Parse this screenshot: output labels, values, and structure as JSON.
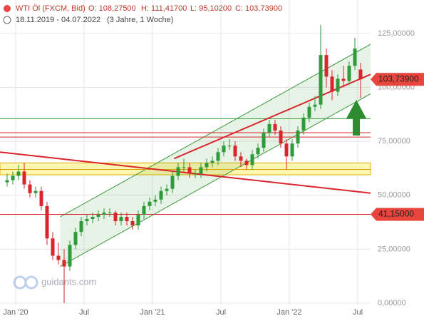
{
  "chart_data": {
    "type": "candlestick",
    "title": "WTI Öl (FXCM, Bid)",
    "quote": [
      "O: 108,27500",
      "H: 111,41700",
      "L: 95,10200",
      "C: 103,73900"
    ],
    "subtitle": "18.11.2019 - 04.07.2022",
    "period": "(3 Jahre, 1 Woche)",
    "watermark": "guidants.com",
    "up_color": "#2e9a3a",
    "down_color": "#d8262c",
    "grid": true,
    "xlim": [
      -1.375,
      31.125
    ],
    "ylim": [
      -1,
      140.5
    ],
    "xticks": [
      {
        "value": 0,
        "label": "Jan '20"
      },
      {
        "value": 6,
        "label": "Jul"
      },
      {
        "value": 12,
        "label": "Jan '21"
      },
      {
        "value": 18,
        "label": "Jul"
      },
      {
        "value": 24,
        "label": "Jan '22"
      },
      {
        "value": 30,
        "label": "Jul"
      }
    ],
    "yticks": [
      {
        "value": 0,
        "label": "0,00000"
      },
      {
        "value": 25,
        "label": "25,00000"
      },
      {
        "value": 50,
        "label": "50,00000"
      },
      {
        "value": 75,
        "label": "75,00000"
      },
      {
        "value": 100,
        "label": "100,00000"
      },
      {
        "value": 125,
        "label": "125,00000"
      }
    ],
    "x": [
      -0.75,
      -0.25,
      0.25,
      0.75,
      1.25,
      1.75,
      2.25,
      2.75,
      3.25,
      3.75,
      4.25,
      4.75,
      5.25,
      5.75,
      6.25,
      6.75,
      7.25,
      7.75,
      8.25,
      8.75,
      9.25,
      9.75,
      10.25,
      10.75,
      11.25,
      11.75,
      12.25,
      12.75,
      13.25,
      13.75,
      14.25,
      14.75,
      15.25,
      15.75,
      16.25,
      16.75,
      17.25,
      17.75,
      18.25,
      18.75,
      19.25,
      19.75,
      20.25,
      20.75,
      21.25,
      21.75,
      22.25,
      22.75,
      23.25,
      23.75,
      24.25,
      24.75,
      25.25,
      25.75,
      26.25,
      26.75,
      27.25,
      27.75,
      28.25,
      28.75,
      29.25,
      29.75,
      30.25
    ],
    "ohlc": [
      [
        56,
        60,
        54,
        57
      ],
      [
        57,
        61,
        55,
        59
      ],
      [
        59,
        64,
        57,
        61
      ],
      [
        61,
        65,
        53,
        55
      ],
      [
        55,
        57,
        49,
        51
      ],
      [
        51,
        54,
        49,
        52
      ],
      [
        52,
        54,
        43,
        45
      ],
      [
        45,
        47,
        27,
        30
      ],
      [
        30,
        33,
        20,
        22
      ],
      [
        22,
        28,
        18,
        20
      ],
      [
        20,
        25,
        0,
        17
      ],
      [
        17,
        29,
        15,
        27
      ],
      [
        27,
        35,
        25,
        33
      ],
      [
        33,
        40,
        31,
        38
      ],
      [
        38,
        41,
        36,
        39
      ],
      [
        39,
        42,
        37,
        40
      ],
      [
        40,
        43,
        38,
        41
      ],
      [
        41,
        44,
        39,
        42
      ],
      [
        42,
        44,
        40,
        42
      ],
      [
        42,
        43,
        36,
        38
      ],
      [
        38,
        42,
        36,
        40
      ],
      [
        40,
        42,
        36,
        38
      ],
      [
        38,
        40,
        34,
        36
      ],
      [
        36,
        43,
        34,
        41
      ],
      [
        41,
        47,
        39,
        45
      ],
      [
        45,
        49,
        43,
        47
      ],
      [
        47,
        50,
        45,
        48
      ],
      [
        48,
        54,
        46,
        52
      ],
      [
        52,
        55,
        50,
        53
      ],
      [
        53,
        61,
        51,
        59
      ],
      [
        59,
        65,
        57,
        63
      ],
      [
        63,
        67,
        61,
        63
      ],
      [
        63,
        65,
        58,
        60
      ],
      [
        60,
        62,
        58,
        60
      ],
      [
        60,
        65,
        58,
        63
      ],
      [
        63,
        67,
        61,
        65
      ],
      [
        65,
        68,
        63,
        66
      ],
      [
        66,
        72,
        64,
        70
      ],
      [
        70,
        75,
        68,
        73
      ],
      [
        73,
        76,
        71,
        73
      ],
      [
        73,
        75,
        66,
        68
      ],
      [
        68,
        70,
        63,
        66
      ],
      [
        66,
        67,
        62,
        64
      ],
      [
        64,
        71,
        62,
        69
      ],
      [
        69,
        74,
        67,
        72
      ],
      [
        72,
        81,
        70,
        79
      ],
      [
        79,
        85,
        77,
        83
      ],
      [
        83,
        85,
        78,
        80
      ],
      [
        80,
        82,
        72,
        74
      ],
      [
        74,
        76,
        62,
        68
      ],
      [
        68,
        76,
        66,
        74
      ],
      [
        74,
        82,
        72,
        80
      ],
      [
        80,
        88,
        78,
        86
      ],
      [
        86,
        93,
        84,
        91
      ],
      [
        91,
        96,
        89,
        92
      ],
      [
        92,
        129,
        90,
        115
      ],
      [
        115,
        118,
        100,
        105
      ],
      [
        105,
        108,
        94,
        98
      ],
      [
        98,
        106,
        96,
        104
      ],
      [
        104,
        110,
        100,
        103
      ],
      [
        103,
        112,
        101,
        110
      ],
      [
        110,
        123,
        108,
        118
      ],
      [
        108.275,
        111.417,
        95.102,
        103.739
      ]
    ],
    "band": [
      59.5,
      65
    ],
    "levels": [
      {
        "value": 85.5,
        "color": "#3a9a3a"
      },
      {
        "value": 79,
        "color": "#d8262c"
      },
      {
        "value": 77,
        "color": "#d8262c"
      },
      {
        "value": 62,
        "color": "#d8a000"
      },
      {
        "value": 41.15,
        "color": "#d8262c"
      }
    ],
    "channel": {
      "color": "#3a9a3a",
      "upper": {
        "x": [
          3.9,
          31.125
        ],
        "y": [
          40,
          120
        ]
      },
      "lower": {
        "x": [
          3.9,
          31.125
        ],
        "y": [
          17,
          97
        ]
      }
    },
    "trendlines": [
      {
        "color": "#d8262c",
        "x": [
          -1.375,
          31.125
        ],
        "y": [
          70,
          51
        ]
      },
      {
        "color": "#d8262c",
        "x": [
          13.9,
          31.125
        ],
        "y": [
          67,
          106
        ]
      }
    ],
    "price_labels": [
      {
        "value": 103.739,
        "label": "103,73900"
      },
      {
        "value": 41.15,
        "label": "41,15000"
      }
    ]
  }
}
